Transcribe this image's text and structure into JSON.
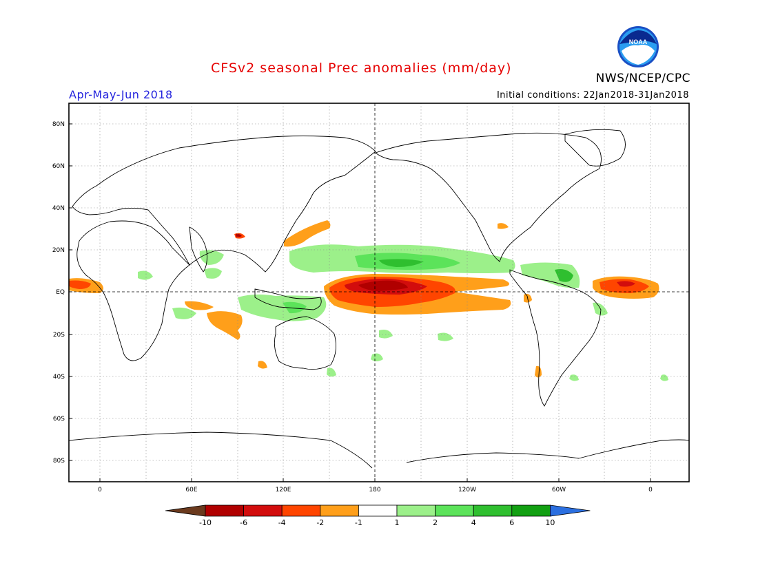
{
  "title": "CFSv2 seasonal Prec anomalies (mm/day)",
  "agency": "NWS/NCEP/CPC",
  "logo_text": "NOAA",
  "season": "Apr-May-Jun 2018",
  "initial_conditions": "Initial conditions: 22Jan2018-31Jan2018",
  "lat_ticks": [
    "80N",
    "60N",
    "40N",
    "20N",
    "EQ",
    "20S",
    "40S",
    "60S",
    "80S"
  ],
  "lon_ticks": [
    "0",
    "60E",
    "120E",
    "180",
    "120W",
    "60W",
    "0"
  ],
  "colorbar": {
    "labels": [
      "-10",
      "-6",
      "-4",
      "-2",
      "-1",
      "1",
      "2",
      "4",
      "6",
      "10"
    ],
    "colors": [
      "#6b3a1e",
      "#b00000",
      "#d20d0d",
      "#ff4500",
      "#ff9f1a",
      "#ffffff",
      "#9cf08a",
      "#5ce35a",
      "#2fbf2f",
      "#12a012",
      "#2b6fe0"
    ]
  },
  "colors": {
    "title": "#e60000",
    "season": "#2222dd"
  }
}
